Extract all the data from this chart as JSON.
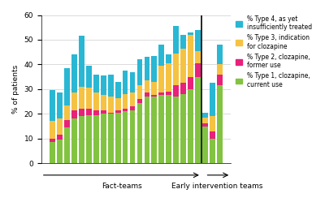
{
  "type1": [
    8.5,
    9.5,
    14.5,
    18.0,
    19.0,
    19.5,
    19.5,
    20.0,
    20.0,
    20.5,
    21.0,
    21.5,
    24.5,
    27.0,
    27.0,
    27.5,
    27.5,
    27.0,
    28.0,
    30.0,
    35.0,
    15.0,
    10.0,
    31.5
  ],
  "type2": [
    1.5,
    2.0,
    3.0,
    3.5,
    3.0,
    2.5,
    2.0,
    1.5,
    0.5,
    1.0,
    1.0,
    1.5,
    1.5,
    1.5,
    0.5,
    1.0,
    1.5,
    4.5,
    4.5,
    5.0,
    5.5,
    1.0,
    3.0,
    4.5
  ],
  "type3": [
    7.0,
    6.5,
    6.0,
    7.0,
    9.0,
    8.5,
    7.0,
    6.0,
    6.5,
    5.0,
    6.0,
    5.5,
    5.5,
    5.0,
    5.5,
    11.0,
    11.5,
    13.0,
    14.0,
    17.0,
    5.0,
    2.5,
    6.0,
    4.0
  ],
  "type4": [
    12.5,
    10.5,
    15.0,
    15.5,
    20.5,
    9.0,
    7.5,
    8.0,
    9.0,
    6.5,
    9.5,
    8.5,
    10.5,
    9.5,
    10.5,
    8.5,
    3.5,
    11.0,
    5.5,
    1.0,
    8.5,
    2.0,
    13.5,
    8.0
  ],
  "colors": {
    "type1": "#82c341",
    "type2": "#e8217a",
    "type3": "#f5c242",
    "type4": "#29b7d3"
  },
  "ylim": [
    0,
    60
  ],
  "yticks": [
    0,
    10,
    20,
    30,
    40,
    50,
    60
  ],
  "ylabel": "% of patients",
  "divider_bar_index": 21,
  "fact_teams_label": "Fact-teams",
  "early_teams_label": "Early intervention teams",
  "legend": [
    "% Type 4, as yet\ninsufficiently treated",
    "% Type 3, indication\nfor clozapine",
    "% Type 2, clozapine,\nformer use",
    "% Type 1, clozapine,\ncurrent use"
  ]
}
